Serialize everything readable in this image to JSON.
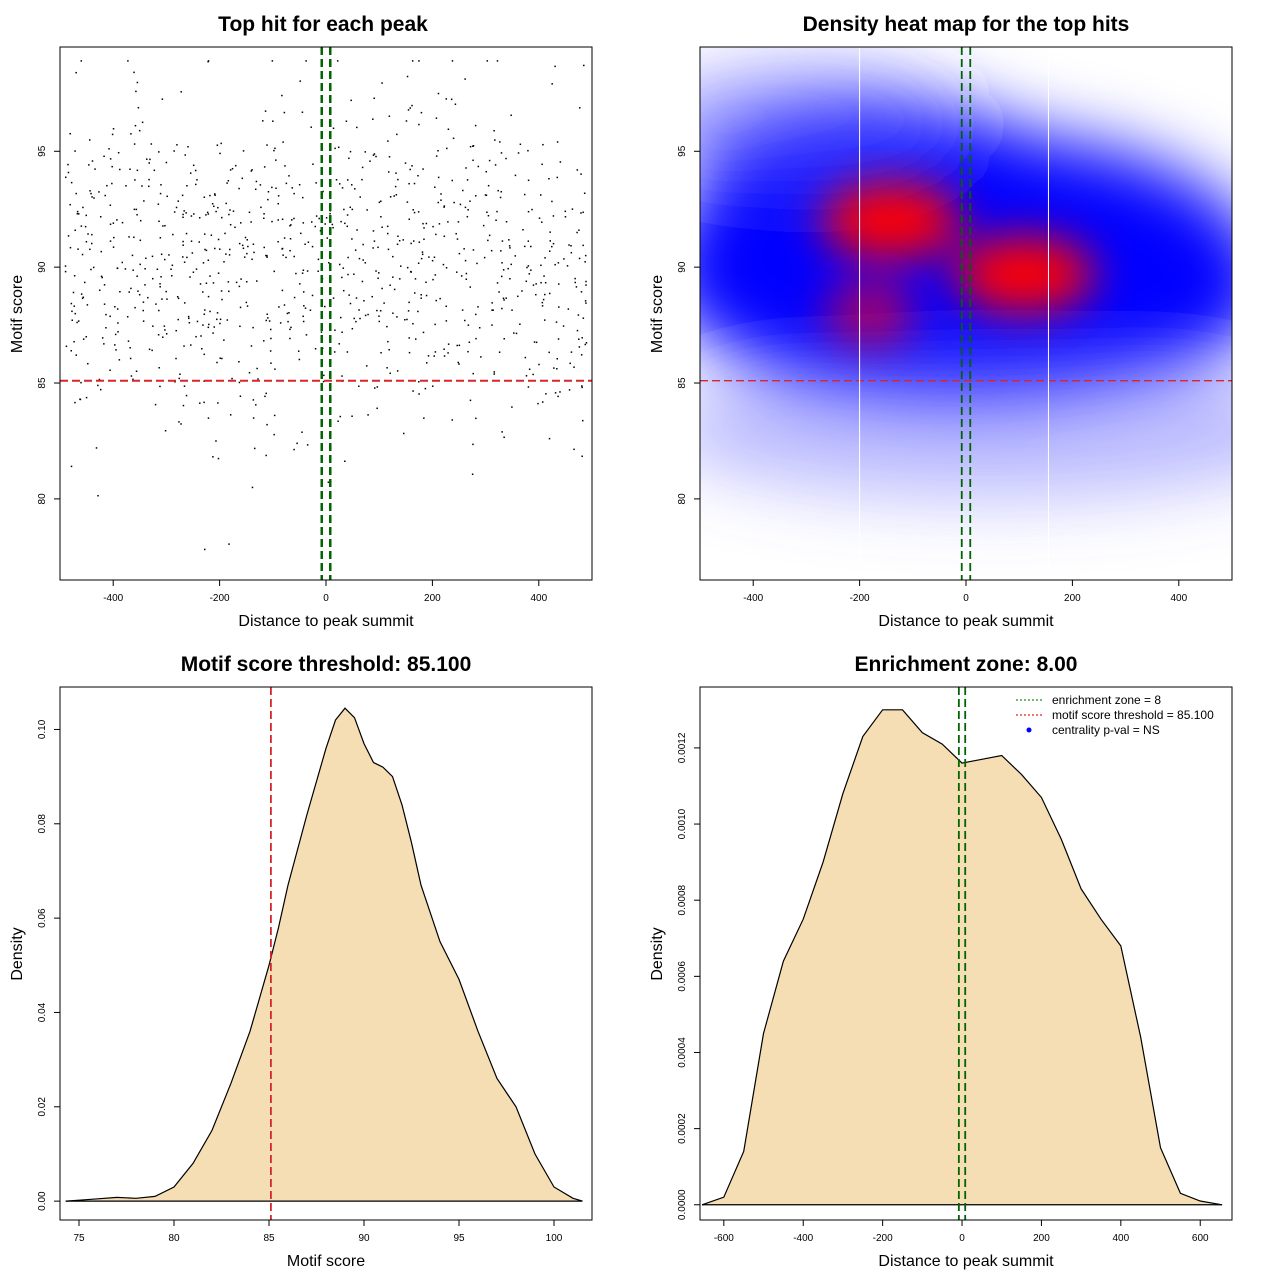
{
  "chart_data": [
    {
      "type": "scatter",
      "title": "Top hit for each peak",
      "xlabel": "Distance to peak summit",
      "ylabel": "Motif score",
      "xlim": [
        -500,
        500
      ],
      "ylim": [
        76.5,
        99.5
      ],
      "xticks": [
        -400,
        -200,
        0,
        200,
        400
      ],
      "yticks": [
        80,
        85,
        90,
        95
      ],
      "point_count": 1000,
      "x_range": [
        -490,
        490
      ],
      "y_range": [
        76.8,
        98.9
      ],
      "hlines": [
        {
          "y": 85.1,
          "color": "#d62728",
          "style": "dashed"
        }
      ],
      "vlines": [
        {
          "x": -8,
          "color": "#006400",
          "style": "dashed"
        },
        {
          "x": 8,
          "color": "#006400",
          "style": "dashed"
        }
      ]
    },
    {
      "type": "heatmap",
      "title": "Density heat map for the top hits",
      "xlabel": "Distance to peak summit",
      "ylabel": "Motif score",
      "xlim": [
        -500,
        500
      ],
      "ylim": [
        76.5,
        99.5
      ],
      "xticks": [
        -400,
        -200,
        0,
        200,
        400
      ],
      "yticks": [
        80,
        85,
        90,
        95
      ],
      "color_scale": [
        "#ffffff",
        "#0000ff",
        "#ff0000"
      ],
      "density_peaks": [
        {
          "x": 110,
          "y": 89.7,
          "level": "high"
        },
        {
          "x": -140,
          "y": 92.0,
          "level": "high"
        },
        {
          "x": -180,
          "y": 88.0,
          "level": "medium"
        }
      ],
      "hlines": [
        {
          "y": 85.1,
          "color": "#d62728",
          "style": "dashed"
        }
      ],
      "vlines": [
        {
          "x": -8,
          "color": "#006400",
          "style": "dashed"
        },
        {
          "x": 8,
          "color": "#006400",
          "style": "dashed"
        },
        {
          "x": -200,
          "color": "#ffffff",
          "style": "solid"
        },
        {
          "x": 155,
          "color": "#ffffff",
          "style": "solid"
        }
      ]
    },
    {
      "type": "area",
      "title": "Motif score threshold: 85.100",
      "xlabel": "Motif score",
      "ylabel": "Density",
      "xlim": [
        74,
        102
      ],
      "ylim": [
        -0.004,
        0.109
      ],
      "xticks": [
        75,
        80,
        85,
        90,
        95,
        100
      ],
      "yticks": [
        0.0,
        0.02,
        0.04,
        0.06,
        0.08,
        0.1
      ],
      "ytick_labels": [
        "0.00",
        "0.02",
        "0.04",
        "0.06",
        "0.08",
        "0.10"
      ],
      "fill_color": "#f5deb3",
      "x": [
        74.3,
        75,
        76,
        77,
        78,
        79,
        80,
        81,
        82,
        83,
        84,
        85,
        85.5,
        86,
        87,
        88,
        88.5,
        89,
        89.5,
        90,
        90.5,
        91,
        91.5,
        92,
        92.5,
        93,
        94,
        95,
        96,
        97,
        98,
        99,
        100,
        101,
        101.5
      ],
      "y": [
        0.0,
        0.0002,
        0.0005,
        0.0008,
        0.0006,
        0.001,
        0.003,
        0.008,
        0.015,
        0.025,
        0.036,
        0.05,
        0.058,
        0.067,
        0.082,
        0.096,
        0.102,
        0.1045,
        0.1025,
        0.097,
        0.093,
        0.092,
        0.09,
        0.084,
        0.076,
        0.067,
        0.055,
        0.047,
        0.036,
        0.026,
        0.02,
        0.01,
        0.003,
        0.0006,
        0.0
      ],
      "vlines": [
        {
          "x": 85.1,
          "color": "#d62728",
          "style": "dashed"
        }
      ]
    },
    {
      "type": "area",
      "title": "Enrichment zone: 8.00",
      "xlabel": "Distance to peak summit",
      "ylabel": "Density",
      "xlim": [
        -660,
        680
      ],
      "ylim": [
        -4e-05,
        0.00136
      ],
      "xticks": [
        -600,
        -400,
        -200,
        0,
        200,
        400,
        600
      ],
      "yticks": [
        0.0,
        0.0002,
        0.0004,
        0.0006,
        0.0008,
        0.001,
        0.0012
      ],
      "ytick_labels": [
        "0.0000",
        "0.0002",
        "0.0004",
        "0.0006",
        "0.0008",
        "0.0010",
        "0.0012"
      ],
      "fill_color": "#f5deb3",
      "x": [
        -655,
        -600,
        -550,
        -500,
        -450,
        -400,
        -350,
        -300,
        -250,
        -200,
        -150,
        -100,
        -50,
        0,
        50,
        100,
        150,
        200,
        250,
        300,
        350,
        400,
        450,
        500,
        550,
        600,
        655
      ],
      "y": [
        0.0,
        2e-05,
        0.00014,
        0.00045,
        0.00064,
        0.00075,
        0.0009,
        0.00108,
        0.00123,
        0.0013,
        0.0013,
        0.00124,
        0.00121,
        0.00116,
        0.00117,
        0.00118,
        0.00113,
        0.00107,
        0.00096,
        0.00083,
        0.00075,
        0.00068,
        0.00044,
        0.00015,
        3e-05,
        1e-05,
        0.0
      ],
      "vlines": [
        {
          "x": -8,
          "color": "#006400",
          "style": "dashed"
        },
        {
          "x": 8,
          "color": "#006400",
          "style": "dashed"
        }
      ],
      "legend": {
        "placement": "top-right",
        "entries": [
          {
            "label": "enrichment zone = 8",
            "color": "#228b22",
            "marker": "dotted-line"
          },
          {
            "label": "motif score threshold = 85.100",
            "color": "#d62728",
            "marker": "dotted-line"
          },
          {
            "label": "centrality p-val = NS",
            "color": "#0000ff",
            "marker": "point"
          }
        ]
      }
    }
  ]
}
